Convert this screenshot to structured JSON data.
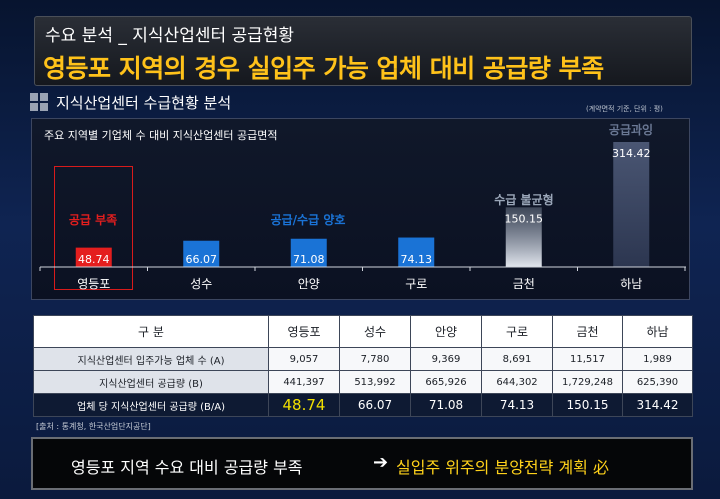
{
  "header": {
    "subtitle": "수요 분석 _ 지식산업센터 공급현황",
    "title": "영등포 지역의 경우 실입주 가능 업체 대비 공급량 부족"
  },
  "section": {
    "title": "지식산업센터 수급현황 분석",
    "unit_note": "(계약면적 기준, 단위 : 평)"
  },
  "chart_data": {
    "type": "bar",
    "title": "주요 지역별 기업체 수 대비 지식산업센터 공급면적",
    "categories": [
      "영등포",
      "성수",
      "안양",
      "구로",
      "금천",
      "하남"
    ],
    "values": [
      48.74,
      66.07,
      71.08,
      74.13,
      150.15,
      314.42
    ],
    "value_labels": [
      "48.74",
      "66.07",
      "71.08",
      "74.13",
      "150.15",
      "314.42"
    ],
    "annotations": {
      "shortage": "공급 부족",
      "balanced": "공급/수급 양호",
      "imbalance": "수급 불균형",
      "oversupply": "공급과잉"
    },
    "colors": {
      "shortage": "#e41e1e",
      "balanced": "#1a73d6",
      "imbalance": "#9aa6b8",
      "oversupply": "#3a4660"
    }
  },
  "table": {
    "headers": [
      "구    분",
      "영등포",
      "성수",
      "안양",
      "구로",
      "금천",
      "하남"
    ],
    "rows": [
      {
        "label": "지식산업센터 입주가능 업체 수 (A)",
        "cells": [
          "9,057",
          "7,780",
          "9,369",
          "8,691",
          "11,517",
          "1,989"
        ]
      },
      {
        "label": "지식산업센터 공급량 (B)",
        "cells": [
          "441,397",
          "513,992",
          "665,926",
          "644,302",
          "1,729,248",
          "625,390"
        ]
      },
      {
        "label": "업체 당 지식산업센터 공급량 (B/A)",
        "cells": [
          "48.74",
          "66.07",
          "71.08",
          "74.13",
          "150.15",
          "314.42"
        ]
      }
    ]
  },
  "source": "[출처 : 통계청, 한국산업단지공단]",
  "banner": {
    "left": "영등포 지역 수요 대비 공급량 부족",
    "arrow": "➔",
    "right": "실입주 위주의 분양전략 계획 必"
  }
}
